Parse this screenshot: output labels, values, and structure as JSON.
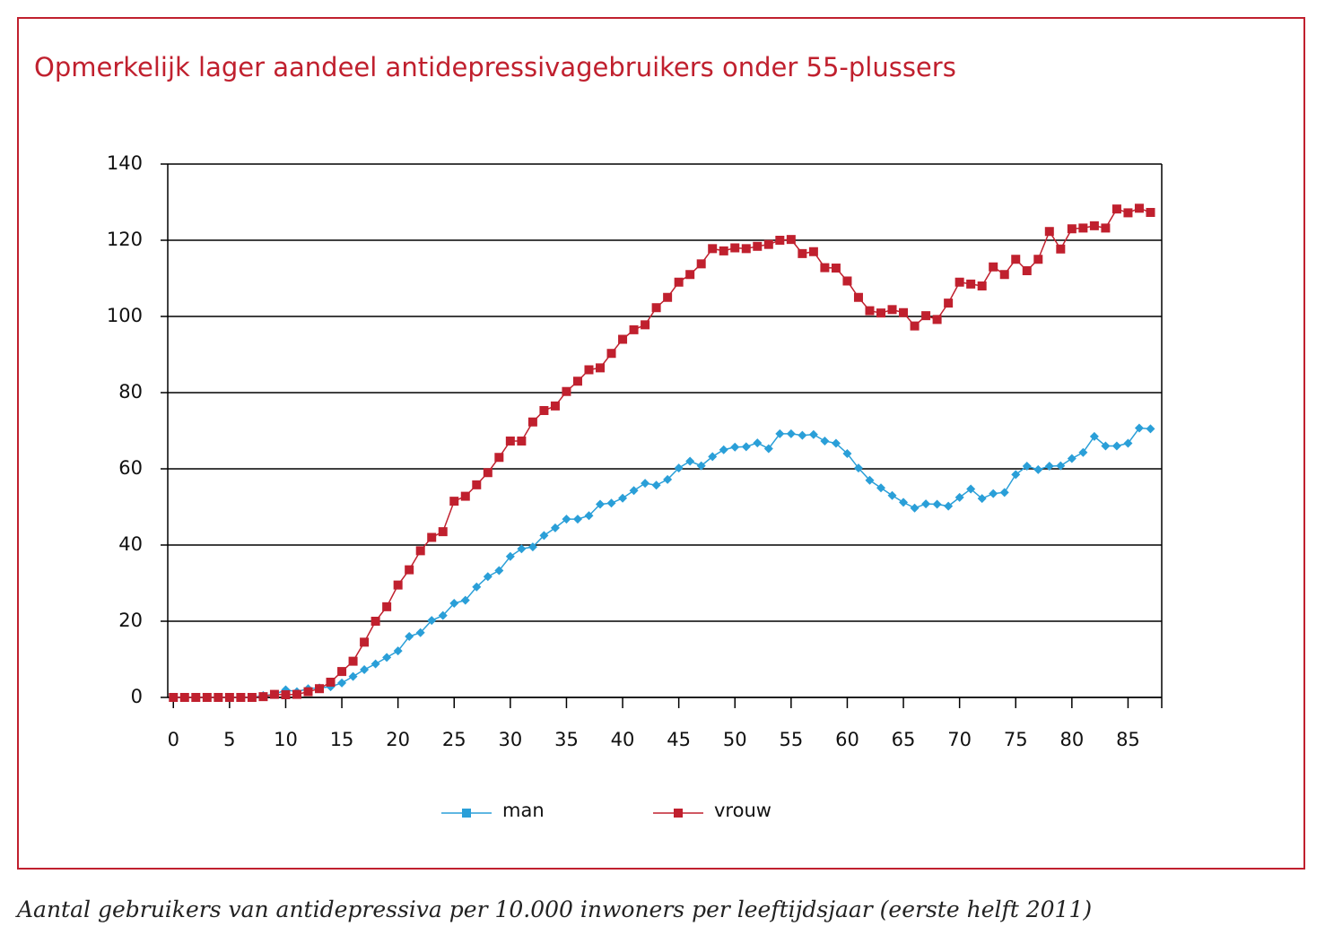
{
  "chart_data": {
    "type": "line",
    "title": "Opmerkelijk lager aandeel antidepressivagebruikers onder 55-plussers",
    "caption": "Aantal gebruikers van antidepressiva per 10.000 inwoners per leeftijdsjaar (eerste helft 2011)",
    "x": [
      0,
      1,
      2,
      3,
      4,
      5,
      6,
      7,
      8,
      9,
      10,
      11,
      12,
      13,
      14,
      15,
      16,
      17,
      18,
      19,
      20,
      21,
      22,
      23,
      24,
      25,
      26,
      27,
      28,
      29,
      30,
      31,
      32,
      33,
      34,
      35,
      36,
      37,
      38,
      39,
      40,
      41,
      42,
      43,
      44,
      45,
      46,
      47,
      48,
      49,
      50,
      51,
      52,
      53,
      54,
      55,
      56,
      57,
      58,
      59,
      60,
      61,
      62,
      63,
      64,
      65,
      66,
      67,
      68,
      69,
      70,
      71,
      72,
      73,
      74,
      75,
      76,
      77,
      78,
      79,
      80,
      81,
      82,
      83,
      84,
      85,
      86,
      87
    ],
    "series": [
      {
        "name": "man",
        "color": "#2a9fd8",
        "marker": "diamond",
        "values": [
          0,
          0,
          0,
          0,
          0,
          0,
          0,
          0,
          0.5,
          0.8,
          2,
          1.5,
          2.3,
          2.5,
          2.8,
          3.8,
          5.5,
          7.3,
          8.8,
          10.5,
          12.2,
          16,
          17,
          20.2,
          21.5,
          24.7,
          25.5,
          29,
          31.7,
          33.3,
          37,
          39,
          39.5,
          42.5,
          44.5,
          46.8,
          46.8,
          47.7,
          50.7,
          51,
          52.3,
          54.3,
          56.2,
          55.7,
          57.2,
          60.2,
          62,
          60.8,
          63.2,
          65,
          65.7,
          65.8,
          66.8,
          65.3,
          69.2,
          69.2,
          68.8,
          69,
          67.3,
          66.7,
          64,
          60.2,
          57,
          55,
          53,
          51.2,
          49.7,
          50.8,
          50.7,
          50.2,
          52.5,
          54.7,
          52.2,
          53.5,
          53.8,
          58.5,
          60.7,
          59.8,
          60.7,
          60.8,
          62.7,
          64.3,
          68.5,
          66,
          66,
          66.7,
          70.7,
          70.5
        ]
      },
      {
        "name": "vrouw",
        "color": "#c0202e",
        "marker": "square",
        "values": [
          0,
          0,
          0,
          0,
          0,
          0,
          0,
          0,
          0.2,
          0.8,
          0.7,
          0.8,
          1.5,
          2.3,
          4,
          6.8,
          9.5,
          14.5,
          20,
          23.8,
          29.5,
          33.5,
          38.5,
          42,
          43.5,
          51.5,
          52.8,
          55.8,
          59,
          63,
          67.3,
          67.3,
          72.3,
          75.3,
          76.5,
          80.3,
          83,
          86,
          86.5,
          90.3,
          94,
          96.5,
          97.8,
          102.3,
          105,
          109,
          111,
          113.8,
          117.8,
          117.2,
          118,
          117.8,
          118.4,
          118.9,
          120,
          120.2,
          116.5,
          117,
          112.8,
          112.7,
          109.3,
          105,
          101.5,
          100.9,
          101.8,
          101,
          97.5,
          100.2,
          99.2,
          103.5,
          109,
          108.5,
          108,
          113,
          111,
          115,
          112,
          115,
          122.3,
          117.7,
          123,
          123.2,
          123.8,
          123.2,
          128.2,
          127.2,
          128.4,
          127.3
        ]
      }
    ],
    "xlim": [
      -0.5,
      88
    ],
    "xticks": [
      0,
      5,
      10,
      15,
      20,
      25,
      30,
      35,
      40,
      45,
      50,
      55,
      60,
      65,
      70,
      75,
      80,
      85
    ],
    "ylim": [
      0,
      140
    ],
    "yticks": [
      0,
      20,
      40,
      60,
      80,
      100,
      120,
      140
    ],
    "grid": true,
    "legend": "bottom"
  }
}
